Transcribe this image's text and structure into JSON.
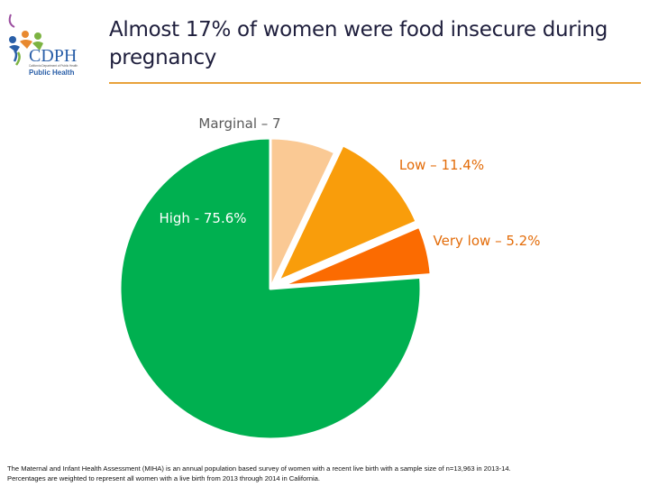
{
  "logo": {
    "brand": "CDPH",
    "tagline": "California Department of Public Health",
    "sub_public": "Public",
    "sub_health": "Health",
    "colors": [
      "#2a5fa8",
      "#e8892f",
      "#7cb342",
      "#9c4fa0"
    ]
  },
  "title": "Almost 17% of women were food insecure during pregnancy",
  "chart_data": {
    "type": "pie",
    "title": "Almost 17% of women were food insecure during pregnancy",
    "start": "12 o'clock, clockwise",
    "slices": [
      {
        "label": "Marginal – 7",
        "value": 7.0,
        "color": "#fac994",
        "exploded": false
      },
      {
        "label": "Low – 11.4%",
        "value": 11.4,
        "color": "#f99d0b",
        "exploded": true
      },
      {
        "label": "Very low – 5.2%",
        "value": 5.2,
        "color": "#fb6b01",
        "exploded": true
      },
      {
        "label": "High - 75.6%",
        "value": 75.6,
        "color": "#00b050",
        "exploded": false
      }
    ],
    "label_colors": {
      "Marginal – 7": "#595959",
      "Low – 11.4%": "#e36c09",
      "Very low – 5.2%": "#e36c09",
      "High - 75.6%": "#ffffff"
    }
  },
  "footnote": {
    "line1": "The Maternal and Infant Health Assessment (MIHA) is an annual population based survey of women with a recent live birth with a sample size of n=13,963 in 2013-14.",
    "line2": "Percentages are weighted to represent all women with a live birth from 2013 through 2014 in California."
  }
}
